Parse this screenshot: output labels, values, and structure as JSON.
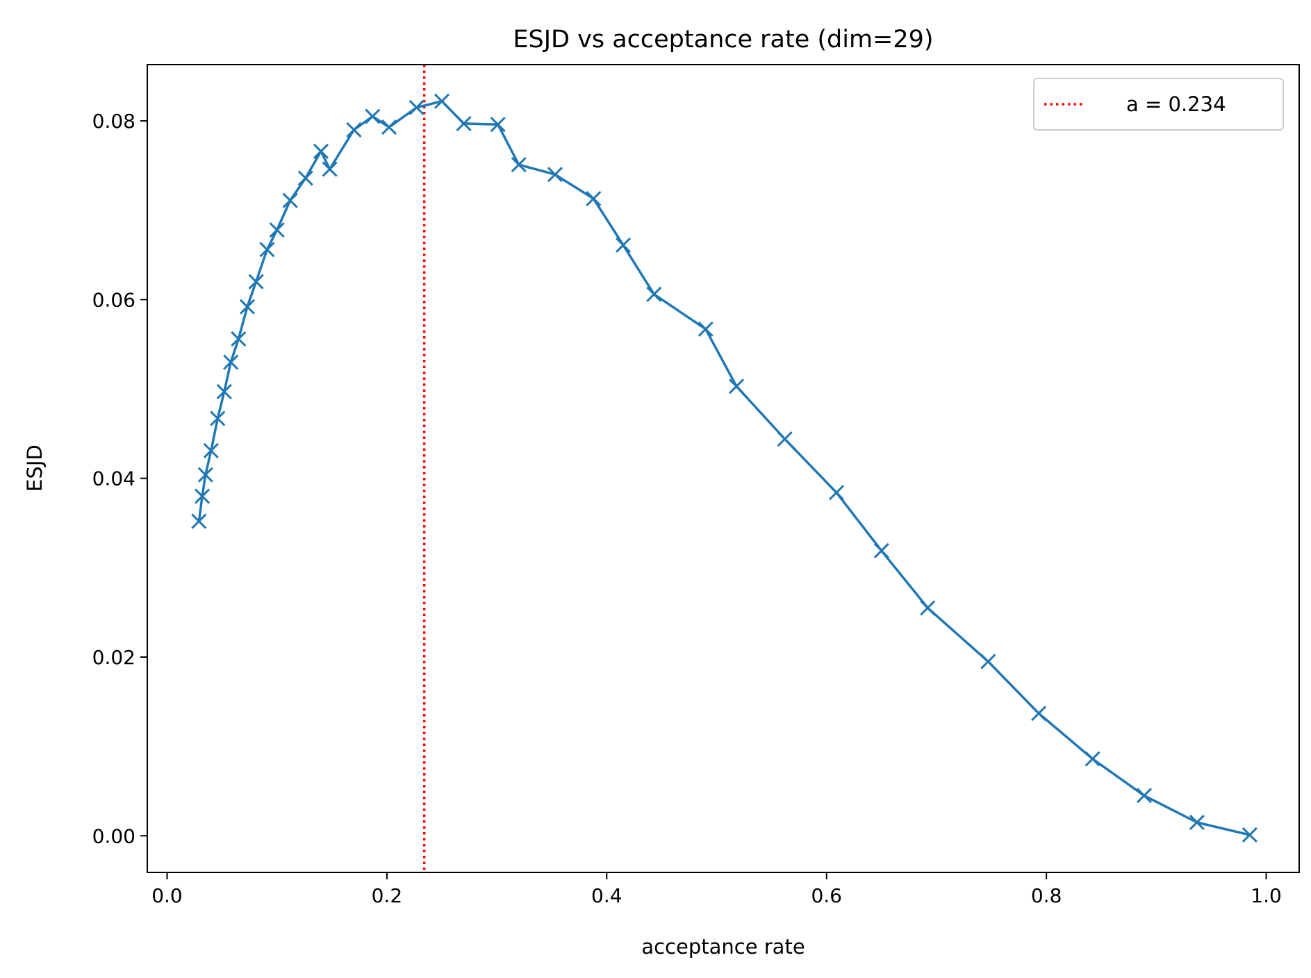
{
  "chart_data": {
    "type": "line",
    "title": "ESJD vs acceptance rate (dim=29)",
    "xlabel": "acceptance rate",
    "ylabel": "ESJD",
    "xlim": [
      -0.018,
      1.03
    ],
    "ylim": [
      -0.0041,
      0.0863
    ],
    "xticks": [
      0.0,
      0.2,
      0.4,
      0.6,
      0.8,
      1.0
    ],
    "xtick_labels": [
      "0.0",
      "0.2",
      "0.4",
      "0.6",
      "0.8",
      "1.0"
    ],
    "yticks": [
      0.0,
      0.02,
      0.04,
      0.06,
      0.08
    ],
    "ytick_labels": [
      "0.00",
      "0.02",
      "0.04",
      "0.06",
      "0.08"
    ],
    "grid": false,
    "legend_position": "top-right",
    "series": [
      {
        "color": "#1f77b4",
        "marker": "x",
        "x": [
          0.029,
          0.032,
          0.035,
          0.04,
          0.046,
          0.052,
          0.058,
          0.065,
          0.073,
          0.081,
          0.091,
          0.1,
          0.112,
          0.126,
          0.14,
          0.148,
          0.17,
          0.187,
          0.202,
          0.227,
          0.25,
          0.27,
          0.301,
          0.32,
          0.353,
          0.388,
          0.415,
          0.443,
          0.49,
          0.518,
          0.562,
          0.609,
          0.65,
          0.692,
          0.747,
          0.793,
          0.842,
          0.889,
          0.937,
          0.985
        ],
        "y": [
          0.0352,
          0.038,
          0.0404,
          0.0431,
          0.0467,
          0.0497,
          0.053,
          0.0556,
          0.0592,
          0.062,
          0.0656,
          0.0678,
          0.0711,
          0.0736,
          0.0766,
          0.0746,
          0.079,
          0.0805,
          0.0793,
          0.0815,
          0.0822,
          0.0797,
          0.0796,
          0.0751,
          0.074,
          0.0713,
          0.0661,
          0.0606,
          0.0567,
          0.0503,
          0.0444,
          0.0384,
          0.0319,
          0.0255,
          0.0195,
          0.0137,
          0.0086,
          0.0045,
          0.0015,
          0.0001
        ]
      }
    ],
    "reference_lines": [
      {
        "axis": "x",
        "value": 0.234,
        "label": "a = 0.234",
        "color": "#ff0000",
        "style": "dotted"
      }
    ]
  }
}
